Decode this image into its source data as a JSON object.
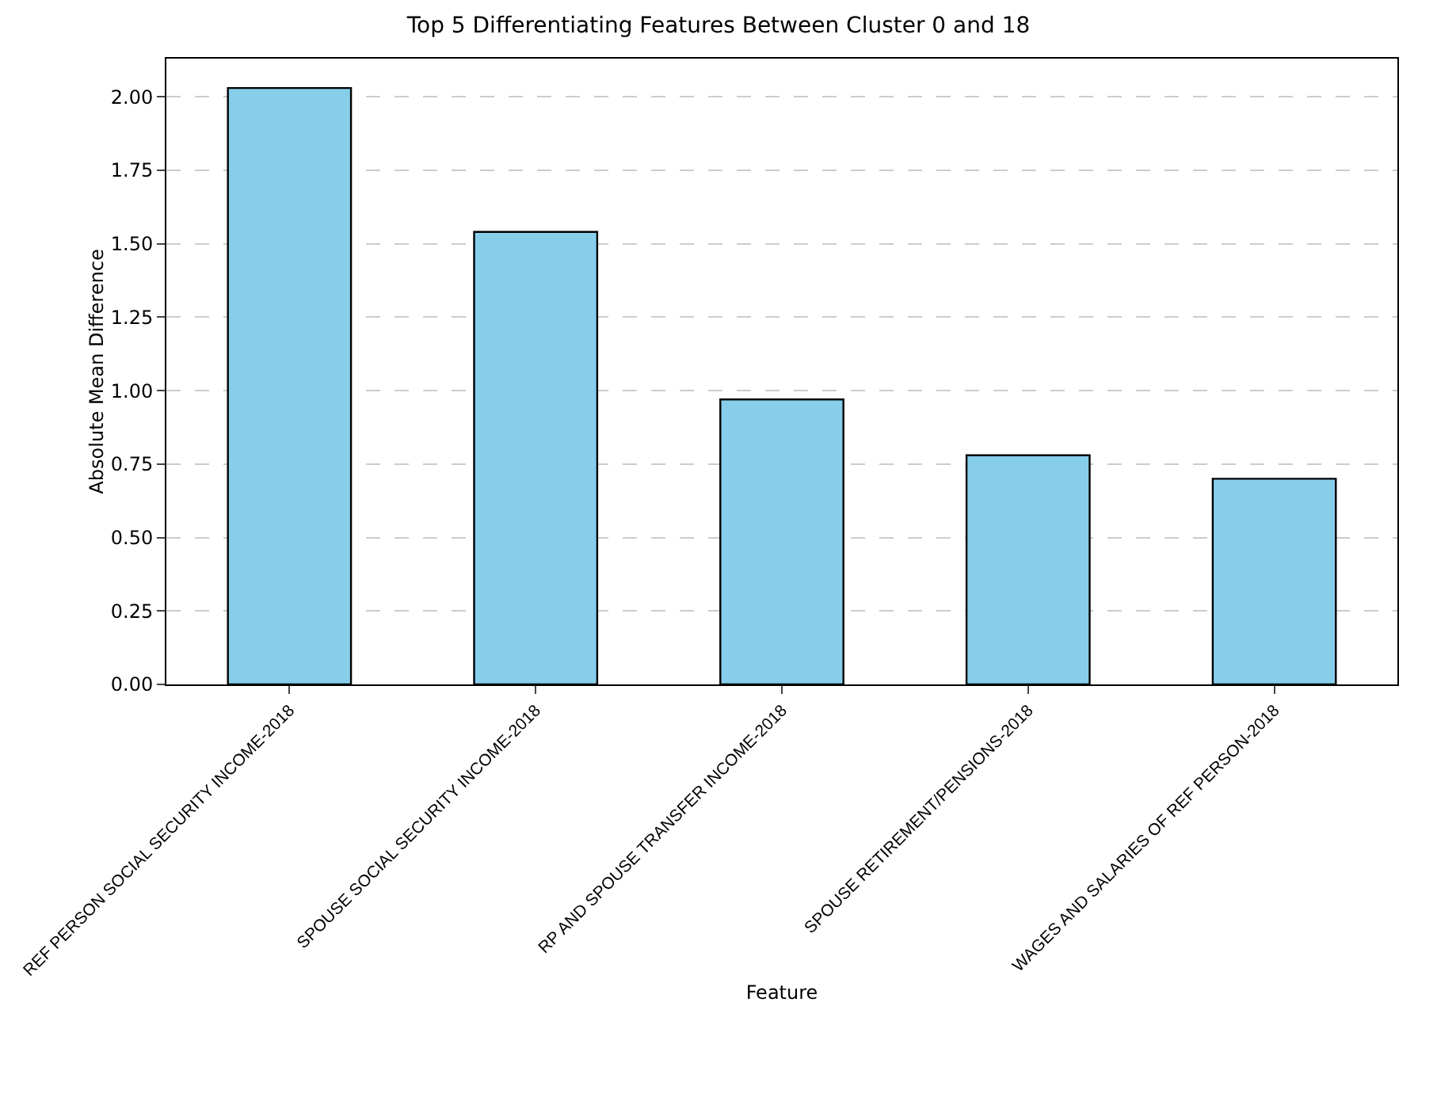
{
  "chart_data": {
    "type": "bar",
    "title": "Top 5 Differentiating Features Between Cluster 0 and 18",
    "xlabel": "Feature",
    "ylabel": "Absolute Mean Difference",
    "categories": [
      "REF PERSON SOCIAL SECURITY INCOME-2018",
      "SPOUSE SOCIAL SECURITY INCOME-2018",
      "RP AND SPOUSE TRANSFER INCOME-2018",
      "SPOUSE RETIREMENT/PENSIONS-2018",
      "WAGES AND SALARIES OF REF PERSON-2018"
    ],
    "values": [
      2.03,
      1.54,
      0.97,
      0.78,
      0.7
    ],
    "color": "#87ceeb",
    "ylim": [
      0,
      2.13
    ],
    "yticks": [
      {
        "value": 0,
        "label": "0.00"
      },
      {
        "value": 0.25,
        "label": "0.25"
      },
      {
        "value": 0.5,
        "label": "0.50"
      },
      {
        "value": 0.75,
        "label": "0.75"
      },
      {
        "value": 1,
        "label": "1.00"
      },
      {
        "value": 1.25,
        "label": "1.25"
      },
      {
        "value": 1.5,
        "label": "1.50"
      },
      {
        "value": 1.75,
        "label": "1.75"
      },
      {
        "value": 2,
        "label": "2.00"
      }
    ],
    "grid": "y"
  }
}
